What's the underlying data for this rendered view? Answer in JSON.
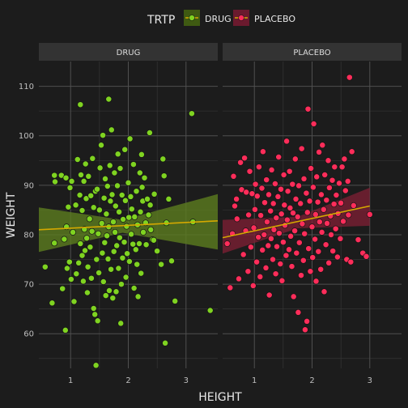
{
  "chart_data": {
    "type": "scatter",
    "xlabel": "HEIGHT",
    "ylabel": "WEIGHT",
    "xlim": [
      0.45,
      3.55
    ],
    "ylim": [
      53,
      115
    ],
    "x_ticks": [
      1,
      2,
      3
    ],
    "y_ticks": [
      60,
      70,
      80,
      90,
      100,
      110
    ],
    "grid": true,
    "smooth": "linear fit with confidence band",
    "legend": {
      "title": "TRTP",
      "position": "top",
      "entries": [
        {
          "label": "DRUG",
          "color": "#7fd321"
        },
        {
          "label": "PLACEBO",
          "color": "#ff2d5a"
        }
      ]
    },
    "facets": [
      {
        "label": "DRUG",
        "color": "#7fd321",
        "fill": "#5c7d1f",
        "line_color": "#d4a800",
        "fit": {
          "x0": 0.45,
          "y0": 81.0,
          "x1": 3.55,
          "y1": 82.8,
          "lo0": 76.5,
          "hi0": 85.5,
          "lo1": 77.0,
          "hi1": 88.2,
          "lomid": 80.4,
          "himid": 83.0,
          "xmid": 1.9
        },
        "points": [
          [
            0.56,
            73.5
          ],
          [
            0.68,
            66.2
          ],
          [
            0.72,
            78.3
          ],
          [
            0.72,
            92.0
          ],
          [
            0.73,
            90.7
          ],
          [
            0.84,
            92.0
          ],
          [
            0.86,
            69.1
          ],
          [
            0.89,
            79.1
          ],
          [
            0.91,
            60.7
          ],
          [
            0.92,
            91.5
          ],
          [
            0.93,
            81.6
          ],
          [
            0.94,
            73.2
          ],
          [
            0.96,
            85.6
          ],
          [
            0.98,
            74.5
          ],
          [
            0.99,
            89.5
          ],
          [
            1.01,
            71.0
          ],
          [
            1.02,
            90.8
          ],
          [
            1.04,
            80.5
          ],
          [
            1.06,
            66.5
          ],
          [
            1.09,
            86.0
          ],
          [
            1.1,
            72.1
          ],
          [
            1.12,
            95.2
          ],
          [
            1.14,
            74.3
          ],
          [
            1.16,
            88.0
          ],
          [
            1.17,
            106.3
          ],
          [
            1.17,
            78.2
          ],
          [
            1.18,
            92.1
          ],
          [
            1.2,
            84.9
          ],
          [
            1.2,
            75.8
          ],
          [
            1.22,
            70.6
          ],
          [
            1.23,
            90.8
          ],
          [
            1.24,
            81.1
          ],
          [
            1.25,
            76.8
          ],
          [
            1.26,
            94.3
          ],
          [
            1.27,
            87.3
          ],
          [
            1.28,
            79.3
          ],
          [
            1.29,
            68.3
          ],
          [
            1.3,
            73.5
          ],
          [
            1.31,
            91.8
          ],
          [
            1.33,
            83.2
          ],
          [
            1.34,
            77.5
          ],
          [
            1.35,
            87.9
          ],
          [
            1.36,
            71.2
          ],
          [
            1.37,
            80.7
          ],
          [
            1.38,
            95.4
          ],
          [
            1.4,
            65.1
          ],
          [
            1.4,
            85.5
          ],
          [
            1.42,
            63.9
          ],
          [
            1.43,
            88.8
          ],
          [
            1.44,
            53.6
          ],
          [
            1.45,
            75.0
          ],
          [
            1.46,
            89.2
          ],
          [
            1.47,
            62.6
          ],
          [
            1.48,
            80.2
          ],
          [
            1.49,
            72.3
          ],
          [
            1.5,
            85.0
          ],
          [
            1.51,
            93.5
          ],
          [
            1.53,
            98.1
          ],
          [
            1.54,
            82.3
          ],
          [
            1.55,
            76.3
          ],
          [
            1.56,
            100.1
          ],
          [
            1.57,
            70.5
          ],
          [
            1.58,
            87.4
          ],
          [
            1.59,
            78.4
          ],
          [
            1.6,
            91.3
          ],
          [
            1.61,
            67.7
          ],
          [
            1.62,
            84.2
          ],
          [
            1.63,
            79.8
          ],
          [
            1.64,
            89.8
          ],
          [
            1.65,
            75.1
          ],
          [
            1.66,
            107.4
          ],
          [
            1.66,
            81.6
          ],
          [
            1.67,
            68.7
          ],
          [
            1.68,
            94.0
          ],
          [
            1.69,
            86.8
          ],
          [
            1.7,
            73.0
          ],
          [
            1.71,
            101.2
          ],
          [
            1.72,
            88.1
          ],
          [
            1.73,
            67.2
          ],
          [
            1.74,
            82.6
          ],
          [
            1.75,
            76.6
          ],
          [
            1.76,
            92.5
          ],
          [
            1.77,
            80.5
          ],
          [
            1.78,
            85.8
          ],
          [
            1.79,
            68.5
          ],
          [
            1.8,
            77.8
          ],
          [
            1.81,
            89.9
          ],
          [
            1.82,
            96.3
          ],
          [
            1.83,
            73.2
          ],
          [
            1.84,
            84.6
          ],
          [
            1.85,
            79.4
          ],
          [
            1.86,
            93.4
          ],
          [
            1.87,
            62.1
          ],
          [
            1.88,
            70.0
          ],
          [
            1.89,
            88.0
          ],
          [
            1.9,
            75.3
          ],
          [
            1.91,
            83.1
          ],
          [
            1.93,
            78.5
          ],
          [
            1.94,
            97.2
          ],
          [
            1.95,
            86.9
          ],
          [
            1.96,
            71.4
          ],
          [
            1.97,
            81.7
          ],
          [
            1.98,
            76.2
          ],
          [
            2.0,
            90.5
          ],
          [
            2.01,
            83.5
          ],
          [
            2.02,
            74.6
          ],
          [
            2.03,
            99.4
          ],
          [
            2.04,
            87.7
          ],
          [
            2.05,
            80.1
          ],
          [
            2.06,
            85.2
          ],
          [
            2.08,
            78.1
          ],
          [
            2.09,
            94.2
          ],
          [
            2.1,
            69.2
          ],
          [
            2.11,
            83.6
          ],
          [
            2.13,
            77.0
          ],
          [
            2.14,
            88.8
          ],
          [
            2.15,
            74.0
          ],
          [
            2.16,
            82.0
          ],
          [
            2.17,
            67.5
          ],
          [
            2.19,
            78.2
          ],
          [
            2.2,
            92.5
          ],
          [
            2.21,
            84.6
          ],
          [
            2.22,
            72.2
          ],
          [
            2.23,
            96.2
          ],
          [
            2.24,
            89.6
          ],
          [
            2.25,
            86.8
          ],
          [
            2.26,
            80.5
          ],
          [
            2.28,
            91.5
          ],
          [
            2.3,
            82.4
          ],
          [
            2.31,
            78.0
          ],
          [
            2.33,
            87.2
          ],
          [
            2.35,
            84.0
          ],
          [
            2.37,
            100.6
          ],
          [
            2.38,
            86.0
          ],
          [
            2.39,
            81.0
          ],
          [
            2.42,
            79.0
          ],
          [
            2.44,
            78.9
          ],
          [
            2.45,
            88.2
          ],
          [
            2.5,
            76.7
          ],
          [
            2.57,
            74.0
          ],
          [
            2.6,
            95.3
          ],
          [
            2.62,
            91.9
          ],
          [
            2.64,
            58.1
          ],
          [
            2.66,
            82.4
          ],
          [
            2.7,
            87.2
          ],
          [
            2.75,
            74.7
          ],
          [
            2.81,
            66.6
          ],
          [
            3.1,
            104.5
          ],
          [
            3.12,
            82.6
          ],
          [
            3.42,
            64.7
          ]
        ]
      },
      {
        "label": "PLACEBO",
        "color": "#ff2d5a",
        "fill": "#7a1f33",
        "line_color": "#d4a800",
        "fit": {
          "x0": 0.45,
          "y0": 79.4,
          "x1": 3.0,
          "y1": 85.8,
          "lo0": 76.2,
          "hi0": 83.0,
          "lo1": 81.8,
          "hi1": 89.5,
          "lomid": 81.3,
          "himid": 83.6,
          "xmid": 1.75
        },
        "points": [
          [
            0.53,
            78.2
          ],
          [
            0.58,
            69.3
          ],
          [
            0.62,
            80.2
          ],
          [
            0.64,
            91.8
          ],
          [
            0.66,
            85.8
          ],
          [
            0.69,
            87.2
          ],
          [
            0.7,
            83.2
          ],
          [
            0.73,
            71.1
          ],
          [
            0.76,
            94.6
          ],
          [
            0.78,
            89.1
          ],
          [
            0.81,
            76.0
          ],
          [
            0.83,
            95.5
          ],
          [
            0.85,
            80.8
          ],
          [
            0.86,
            88.6
          ],
          [
            0.89,
            72.6
          ],
          [
            0.9,
            84.0
          ],
          [
            0.92,
            92.8
          ],
          [
            0.94,
            77.5
          ],
          [
            0.96,
            88.3
          ],
          [
            0.98,
            69.7
          ],
          [
            0.99,
            81.4
          ],
          [
            1.01,
            85.1
          ],
          [
            1.02,
            90.2
          ],
          [
            1.04,
            74.5
          ],
          [
            1.05,
            87.8
          ],
          [
            1.07,
            79.5
          ],
          [
            1.08,
            93.7
          ],
          [
            1.1,
            71.5
          ],
          [
            1.11,
            83.9
          ],
          [
            1.13,
            89.4
          ],
          [
            1.14,
            76.9
          ],
          [
            1.15,
            96.8
          ],
          [
            1.17,
            80.0
          ],
          [
            1.18,
            86.5
          ],
          [
            1.2,
            73.3
          ],
          [
            1.21,
            91.1
          ],
          [
            1.22,
            82.6
          ],
          [
            1.24,
            77.8
          ],
          [
            1.25,
            88.1
          ],
          [
            1.26,
            67.8
          ],
          [
            1.28,
            84.8
          ],
          [
            1.29,
            79.2
          ],
          [
            1.3,
            93.1
          ],
          [
            1.32,
            75.0
          ],
          [
            1.33,
            86.3
          ],
          [
            1.34,
            81.0
          ],
          [
            1.36,
            90.3
          ],
          [
            1.37,
            72.1
          ],
          [
            1.38,
            83.4
          ],
          [
            1.39,
            77.6
          ],
          [
            1.41,
            87.7
          ],
          [
            1.42,
            95.7
          ],
          [
            1.43,
            80.3
          ],
          [
            1.45,
            74.1
          ],
          [
            1.46,
            89.2
          ],
          [
            1.47,
            84.2
          ],
          [
            1.48,
            70.7
          ],
          [
            1.5,
            78.5
          ],
          [
            1.51,
            92.1
          ],
          [
            1.52,
            86.0
          ],
          [
            1.53,
            81.9
          ],
          [
            1.55,
            75.8
          ],
          [
            1.56,
            98.9
          ],
          [
            1.57,
            83.0
          ],
          [
            1.58,
            88.8
          ],
          [
            1.6,
            77.0
          ],
          [
            1.61,
            92.8
          ],
          [
            1.62,
            85.4
          ],
          [
            1.63,
            79.7
          ],
          [
            1.65,
            73.6
          ],
          [
            1.66,
            90.2
          ],
          [
            1.67,
            84.4
          ],
          [
            1.68,
            67.5
          ],
          [
            1.7,
            80.8
          ],
          [
            1.71,
            95.3
          ],
          [
            1.72,
            87.2
          ],
          [
            1.73,
            76.3
          ],
          [
            1.75,
            83.6
          ],
          [
            1.76,
            64.3
          ],
          [
            1.77,
            89.9
          ],
          [
            1.78,
            78.4
          ],
          [
            1.8,
            86.3
          ],
          [
            1.81,
            71.8
          ],
          [
            1.82,
            97.4
          ],
          [
            1.83,
            82.2
          ],
          [
            1.85,
            74.8
          ],
          [
            1.86,
            91.3
          ],
          [
            1.87,
            80.2
          ],
          [
            1.88,
            60.8
          ],
          [
            1.9,
            88.4
          ],
          [
            1.91,
            62.5
          ],
          [
            1.92,
            84.5
          ],
          [
            1.93,
            105.4
          ],
          [
            1.94,
            77.2
          ],
          [
            1.96,
            86.8
          ],
          [
            1.97,
            72.6
          ],
          [
            1.98,
            93.4
          ],
          [
            2.0,
            81.6
          ],
          [
            2.01,
            75.4
          ],
          [
            2.02,
            89.6
          ],
          [
            2.03,
            102.4
          ],
          [
            2.05,
            79.1
          ],
          [
            2.06,
            84.1
          ],
          [
            2.07,
            70.6
          ],
          [
            2.08,
            91.7
          ],
          [
            2.1,
            86.6
          ],
          [
            2.11,
            76.6
          ],
          [
            2.12,
            96.7
          ],
          [
            2.13,
            82.6
          ],
          [
            2.15,
            73.0
          ],
          [
            2.16,
            88.1
          ],
          [
            2.17,
            80.5
          ],
          [
            2.18,
            98.1
          ],
          [
            2.2,
            85.1
          ],
          [
            2.21,
            68.5
          ],
          [
            2.22,
            92.1
          ],
          [
            2.24,
            78.0
          ],
          [
            2.25,
            87.0
          ],
          [
            2.26,
            82.3
          ],
          [
            2.28,
            95.0
          ],
          [
            2.29,
            74.3
          ],
          [
            2.3,
            89.5
          ],
          [
            2.32,
            83.8
          ],
          [
            2.33,
            80.0
          ],
          [
            2.35,
            91.0
          ],
          [
            2.36,
            76.7
          ],
          [
            2.38,
            86.2
          ],
          [
            2.39,
            93.7
          ],
          [
            2.41,
            81.2
          ],
          [
            2.42,
            88.0
          ],
          [
            2.44,
            75.5
          ],
          [
            2.45,
            84.3
          ],
          [
            2.47,
            90.4
          ],
          [
            2.49,
            79.2
          ],
          [
            2.5,
            86.4
          ],
          [
            2.52,
            93.7
          ],
          [
            2.54,
            82.7
          ],
          [
            2.56,
            95.3
          ],
          [
            2.58,
            88.9
          ],
          [
            2.6,
            75.0
          ],
          [
            2.62,
            90.8
          ],
          [
            2.63,
            84.0
          ],
          [
            2.65,
            111.8
          ],
          [
            2.67,
            74.5
          ],
          [
            2.69,
            96.8
          ],
          [
            2.72,
            85.9
          ],
          [
            2.8,
            79.0
          ],
          [
            2.88,
            76.3
          ],
          [
            2.94,
            75.6
          ],
          [
            3.0,
            84.1
          ]
        ]
      }
    ]
  }
}
